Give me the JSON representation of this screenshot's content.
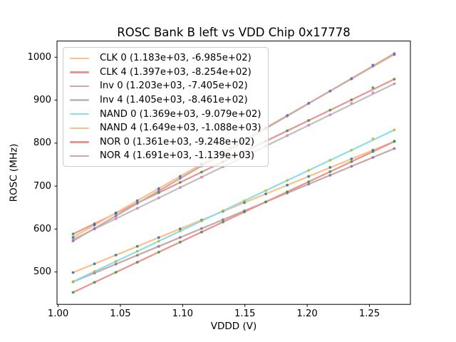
{
  "figure": {
    "background": "#ffffff",
    "frame_color": "#000000"
  },
  "chart_data": {
    "type": "scatter",
    "title": "ROSC Bank B left vs VDD Chip 0x17778",
    "xlabel": "VDDD (V)",
    "ylabel": "ROSC (MHz)",
    "xlim": [
      0.9991,
      1.2829
    ],
    "ylim": [
      424.6,
      1037.6
    ],
    "grid": false,
    "legend_position": "upper left",
    "x_tick_labels": [
      "1.00",
      "1.05",
      "1.10",
      "1.15",
      "1.20",
      "1.25"
    ],
    "x_ticks": [
      1.0,
      1.05,
      1.1,
      1.15,
      1.2,
      1.25
    ],
    "y_tick_labels": [
      "500",
      "600",
      "700",
      "800",
      "900",
      "1000"
    ],
    "y_ticks": [
      500,
      600,
      700,
      800,
      900,
      1000
    ],
    "x": [
      1.012,
      1.0292,
      1.0464,
      1.0636,
      1.0808,
      1.098,
      1.1152,
      1.1324,
      1.1496,
      1.1668,
      1.184,
      1.2012,
      1.2184,
      1.2356,
      1.2528,
      1.27
    ],
    "series": [
      {
        "name": "CLK 0",
        "label": "CLK 0 (1.183e+03, -6.985e+02)",
        "slope": 1183,
        "intercept": -698.5,
        "line_color": "#ffbf86",
        "marker_color": "#1f77b4",
        "y": [
          498.7,
          519.0,
          539.4,
          559.7,
          580.1,
          600.4,
          620.8,
          641.1,
          661.5,
          681.8,
          702.2,
          722.5,
          743.5,
          763.2,
          783.6,
          804.5
        ]
      },
      {
        "name": "CLK 4",
        "label": "CLK 4 (1.397e+03, -8.254e+02)",
        "slope": 1397,
        "intercept": -825.4,
        "line_color": "#ea9393",
        "marker_color": "#2ca02c",
        "y": [
          588.4,
          612.4,
          636.4,
          660.4,
          684.5,
          708.5,
          732.5,
          756.6,
          780.6,
          804.6,
          828.7,
          852.7,
          876.7,
          900.7,
          928.9,
          948.8
        ]
      },
      {
        "name": "Inv 0",
        "label": "Inv 0 (1.203e+03, -7.405e+02)",
        "slope": 1203,
        "intercept": -740.5,
        "line_color": "#c5aaa5",
        "marker_color": "#9467bd",
        "y": [
          476.9,
          497.6,
          518.3,
          539.0,
          559.7,
          580.4,
          601.1,
          621.8,
          642.5,
          663.2,
          683.9,
          704.5,
          725.2,
          745.9,
          766.6,
          787.3
        ]
      },
      {
        "name": "Inv 4",
        "label": "Inv 4 (1.405e+03, -8.461e+02)",
        "slope": 1405,
        "intercept": -846.1,
        "line_color": "#bfbfbf",
        "marker_color": "#e377c2",
        "y": [
          575.8,
          599.9,
          624.1,
          648.3,
          672.4,
          696.6,
          720.8,
          744.9,
          769.1,
          793.3,
          817.4,
          841.6,
          865.8,
          892.9,
          917.2,
          938.2
        ]
      },
      {
        "name": "NAND 0",
        "label": "NAND 0 (1.369e+03, -9.079e+02)",
        "slope": 1369,
        "intercept": -907.9,
        "line_color": "#8bdee7",
        "marker_color": "#bcbd22",
        "y": [
          477.5,
          501.1,
          524.6,
          548.2,
          571.7,
          595.3,
          618.8,
          642.4,
          665.9,
          689.4,
          713.0,
          736.5,
          760.1,
          783.6,
          810.0,
          830.7
        ]
      },
      {
        "name": "NAND 4",
        "label": "NAND 4 (1.649e+03, -1.088e+03)",
        "slope": 1649,
        "intercept": -1088.0,
        "line_color": "#ffbf86",
        "marker_color": "#1f77b4",
        "y": [
          580.8,
          609.2,
          637.5,
          665.9,
          694.2,
          722.6,
          751.0,
          779.3,
          807.7,
          836.1,
          864.4,
          892.8,
          921.1,
          949.5,
          981.5,
          1006.2
        ]
      },
      {
        "name": "NOR 0",
        "label": "NOR 0 (1.361e+03, -9.248e+02)",
        "slope": 1361,
        "intercept": -924.8,
        "line_color": "#ea9393",
        "marker_color": "#2ca02c",
        "y": [
          452.5,
          475.9,
          499.4,
          522.8,
          546.2,
          569.6,
          593.0,
          616.4,
          639.8,
          663.2,
          686.6,
          710.0,
          733.5,
          756.9,
          780.3,
          803.7
        ]
      },
      {
        "name": "NOR 4",
        "label": "NOR 4 (1.691e+03, -1.139e+03)",
        "slope": 1691,
        "intercept": -1139.0,
        "line_color": "#c5aaa5",
        "marker_color": "#9467bd",
        "y": [
          572.3,
          601.4,
          630.5,
          659.6,
          688.6,
          717.7,
          746.8,
          775.9,
          805.0,
          834.1,
          863.1,
          892.2,
          921.3,
          950.4,
          979.5,
          1008.6
        ]
      }
    ]
  }
}
